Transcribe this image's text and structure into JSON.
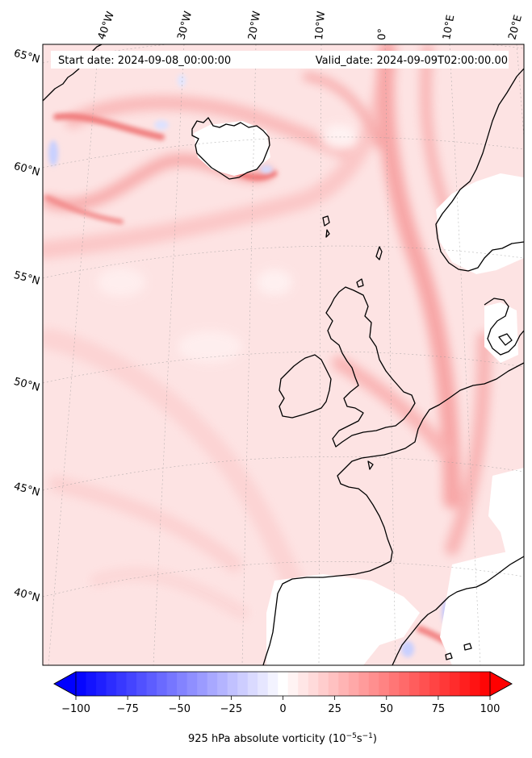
{
  "map": {
    "start_label": "Start date: 2024-09-08_00:00:00",
    "valid_label": "Valid_date: 2024-09-09T02:00:00.00",
    "lon_labels": [
      {
        "id": "40w",
        "text": "40°W"
      },
      {
        "id": "30w",
        "text": "30°W"
      },
      {
        "id": "20w",
        "text": "20°W"
      },
      {
        "id": "10w",
        "text": "10°W"
      },
      {
        "id": "0",
        "text": "0°"
      },
      {
        "id": "10e",
        "text": "10°E"
      },
      {
        "id": "20e",
        "text": "20°E"
      }
    ],
    "lat_labels": [
      {
        "id": "65n",
        "text": "65°N"
      },
      {
        "id": "60n",
        "text": "60°N"
      },
      {
        "id": "55n",
        "text": "55°N"
      },
      {
        "id": "50n",
        "text": "50°N"
      },
      {
        "id": "45n",
        "text": "45°N"
      },
      {
        "id": "40n",
        "text": "40°N"
      }
    ],
    "field_colors": {
      "background": "#fde3e3",
      "light": "#fff4f4",
      "medium": "#fbc9c9",
      "strong": "#f79a9a",
      "negative": "#dfe4ff"
    }
  },
  "colorbar": {
    "vmin": -100,
    "vmax": 100,
    "ticks": [
      "−100",
      "−75",
      "−50",
      "−25",
      "0",
      "25",
      "50",
      "75",
      "100"
    ],
    "tick_values": [
      -100,
      -75,
      -50,
      -25,
      0,
      25,
      50,
      75,
      100
    ],
    "levels": 41,
    "cmap": "bwr",
    "label_prefix": "925 hPa absolute vorticity (10",
    "label_exp1": "−5",
    "label_mid": "s",
    "label_exp2": "−1",
    "label_suffix": ")"
  }
}
